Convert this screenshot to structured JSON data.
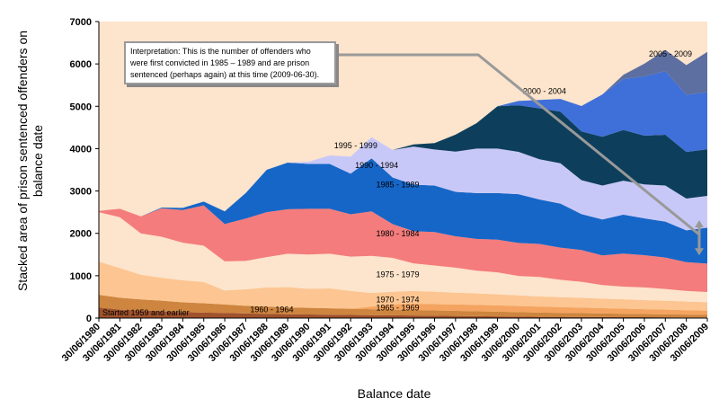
{
  "chart_data": {
    "type": "area",
    "stacked": true,
    "xlabel": "Balance date",
    "ylabel": "Stacked area of prison sentenced offenders on balance date",
    "ylim": [
      0,
      7000
    ],
    "yticks": [
      0,
      1000,
      2000,
      3000,
      4000,
      5000,
      6000,
      7000
    ],
    "categories": [
      "30/06/1980",
      "30/06/1981",
      "30/06/1982",
      "30/06/1983",
      "30/06/1984",
      "30/06/1985",
      "30/06/1986",
      "30/06/1987",
      "30/06/1988",
      "30/06/1989",
      "30/06/1990",
      "30/06/1991",
      "30/06/1992",
      "30/06/1993",
      "30/06/1994",
      "30/06/1995",
      "30/06/1996",
      "30/06/1997",
      "30/06/1998",
      "30/06/1999",
      "30/06/2000",
      "30/06/2001",
      "30/06/2002",
      "30/06/2003",
      "30/06/2004",
      "30/06/2005",
      "30/06/2006",
      "30/06/2007",
      "30/06/2008",
      "30/06/2009"
    ],
    "series": [
      {
        "name": "Started 1959 and earlier",
        "color": "#a0522d",
        "values": [
          250,
          200,
          180,
          160,
          140,
          130,
          120,
          110,
          100,
          90,
          85,
          80,
          75,
          70,
          65,
          60,
          55,
          50,
          45,
          40,
          35,
          30,
          28,
          26,
          24,
          22,
          20,
          18,
          16,
          15
        ]
      },
      {
        "name": "1960 - 1964",
        "color": "#cd853f",
        "values": [
          300,
          280,
          260,
          250,
          230,
          220,
          200,
          180,
          170,
          160,
          155,
          150,
          145,
          140,
          135,
          130,
          125,
          120,
          115,
          110,
          105,
          100,
          95,
          90,
          85,
          80,
          75,
          70,
          65,
          60
        ]
      },
      {
        "name": "1965 - 1969",
        "color": "#f4a460",
        "values": [
          0,
          0,
          0,
          0,
          0,
          0,
          0,
          0,
          0,
          0,
          0,
          0,
          0,
          60,
          120,
          150,
          150,
          150,
          150,
          150,
          145,
          140,
          135,
          130,
          125,
          120,
          115,
          110,
          105,
          100
        ]
      },
      {
        "name": "1970 - 1974",
        "color": "#fcc591",
        "values": [
          780,
          700,
          580,
          540,
          520,
          500,
          330,
          390,
          450,
          480,
          450,
          470,
          420,
          320,
          300,
          300,
          290,
          280,
          270,
          260,
          250,
          240,
          235,
          230,
          225,
          220,
          215,
          210,
          205,
          200
        ]
      },
      {
        "name": "1975 - 1979",
        "color": "#fde4cc",
        "values": [
          1170,
          1200,
          980,
          970,
          890,
          860,
          690,
          670,
          720,
          790,
          810,
          820,
          810,
          880,
          800,
          650,
          620,
          590,
          540,
          520,
          460,
          460,
          410,
          380,
          320,
          300,
          300,
          280,
          250,
          240
        ]
      },
      {
        "name": "1980 - 1984",
        "color": "#f47c7c",
        "values": [
          30,
          200,
          400,
          670,
          770,
          950,
          880,
          1000,
          1060,
          1050,
          1080,
          1060,
          1000,
          1050,
          800,
          760,
          790,
          740,
          750,
          770,
          780,
          780,
          760,
          750,
          700,
          780,
          760,
          740,
          680,
          670
        ]
      },
      {
        "name": "1985 - 1989",
        "color": "#1666c8",
        "values": [
          0,
          0,
          0,
          20,
          50,
          90,
          300,
          600,
          1000,
          1100,
          1060,
          1060,
          960,
          1250,
          1100,
          1100,
          1100,
          1050,
          1080,
          1100,
          1150,
          1050,
          1040,
          850,
          850,
          920,
          870,
          850,
          750,
          850
        ]
      },
      {
        "name": "1990 - 1994",
        "color": "#c8c8f8",
        "values": [
          0,
          0,
          0,
          0,
          0,
          0,
          0,
          0,
          0,
          0,
          50,
          200,
          400,
          500,
          650,
          900,
          850,
          950,
          1050,
          1050,
          1000,
          950,
          950,
          800,
          800,
          800,
          800,
          850,
          750,
          750
        ]
      },
      {
        "name": "1995 - 1999",
        "color": "#0d3f5c",
        "values": [
          0,
          0,
          0,
          0,
          0,
          0,
          0,
          0,
          0,
          0,
          0,
          0,
          0,
          0,
          0,
          50,
          150,
          400,
          600,
          1000,
          1100,
          1200,
          1220,
          1150,
          1150,
          1200,
          1150,
          1200,
          1100,
          1100
        ]
      },
      {
        "name": "2000 - 2004",
        "color": "#3f6fd8",
        "values": [
          0,
          0,
          0,
          0,
          0,
          0,
          0,
          0,
          0,
          0,
          0,
          0,
          0,
          0,
          0,
          0,
          0,
          0,
          0,
          0,
          100,
          200,
          300,
          600,
          1000,
          1200,
          1400,
          1500,
          1350,
          1350
        ]
      },
      {
        "name": "2005 - 2009",
        "color": "#5d6fa0",
        "values": [
          0,
          0,
          0,
          0,
          0,
          0,
          0,
          0,
          0,
          0,
          0,
          0,
          0,
          0,
          0,
          0,
          0,
          0,
          0,
          0,
          0,
          0,
          0,
          0,
          0,
          100,
          300,
          500,
          700,
          950
        ]
      }
    ],
    "band_labels": [
      {
        "text": "Started 1959 and earlier"
      },
      {
        "text": "1960 - 1964"
      },
      {
        "text": "1965 - 1969"
      },
      {
        "text": "1970 - 1974"
      },
      {
        "text": "1975 - 1979"
      },
      {
        "text": "1980 - 1984"
      },
      {
        "text": "1985 - 1989"
      },
      {
        "text": "1990 - 1994"
      },
      {
        "text": "1995 - 1999"
      },
      {
        "text": "2000 - 2004"
      },
      {
        "text": "2005 - 2009"
      }
    ],
    "annotation": "Interpretation:  This is the number of offenders who were first convicted in 1985 – 1989 and are prison sentenced (perhaps again) at this time (2009-06-30).",
    "plot_background": "#fde4cc",
    "grid": false
  }
}
